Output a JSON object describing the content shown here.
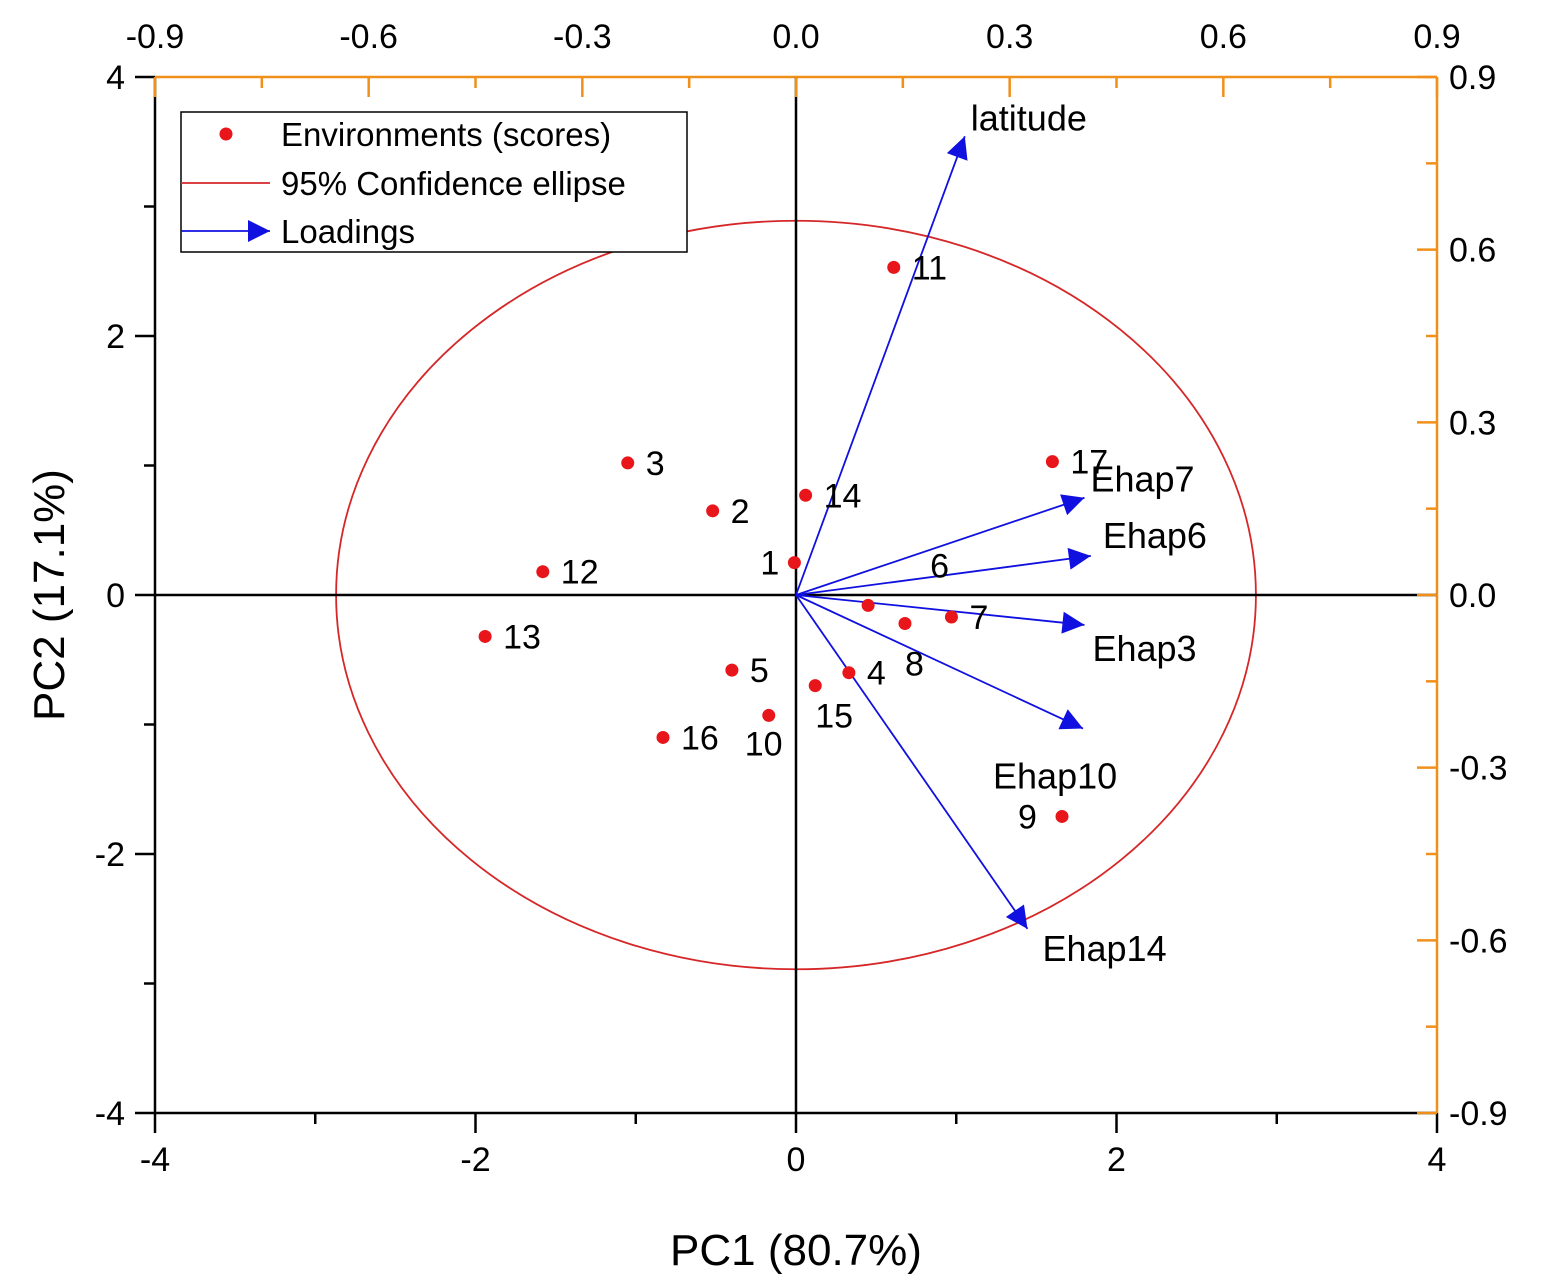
{
  "chart_data": {
    "type": "scatter",
    "xlabel": "PC1 (80.7%)",
    "ylabel": "PC2 (17.1%)",
    "xlim": [
      -4,
      4
    ],
    "ylim": [
      -4,
      4
    ],
    "x_ticks": [
      "-4",
      "-2",
      "0",
      "2",
      "4"
    ],
    "y_ticks": [
      "-4",
      "-2",
      "0",
      "2",
      "4"
    ],
    "top_xlim": [
      -0.9,
      0.9
    ],
    "top_ticks": [
      "-0.9",
      "-0.6",
      "-0.3",
      "0.0",
      "0.3",
      "0.6",
      "0.9"
    ],
    "right_ylim": [
      -0.9,
      0.9
    ],
    "right_ticks": [
      "-0.9",
      "-0.6",
      "-0.3",
      "0.0",
      "0.3",
      "0.6",
      "0.9"
    ],
    "legend": {
      "position": "top-left",
      "entries": [
        "Environments (scores)",
        "95% Confidence ellipse",
        "Loadings"
      ]
    },
    "scores": [
      {
        "label": "1",
        "x": -0.01,
        "y": 0.25
      },
      {
        "label": "2",
        "x": -0.52,
        "y": 0.65
      },
      {
        "label": "3",
        "x": -1.05,
        "y": 1.02
      },
      {
        "label": "4",
        "x": 0.33,
        "y": -0.6
      },
      {
        "label": "5",
        "x": -0.4,
        "y": -0.58
      },
      {
        "label": "6",
        "x": 0.45,
        "y": -0.08
      },
      {
        "label": "7",
        "x": 0.97,
        "y": -0.17
      },
      {
        "label": "8",
        "x": 0.68,
        "y": -0.22
      },
      {
        "label": "9",
        "x": 1.66,
        "y": -1.71
      },
      {
        "label": "10",
        "x": -0.17,
        "y": -0.93
      },
      {
        "label": "11",
        "x": 0.61,
        "y": 2.53
      },
      {
        "label": "12",
        "x": -1.58,
        "y": 0.18
      },
      {
        "label": "13",
        "x": -1.94,
        "y": -0.32
      },
      {
        "label": "14",
        "x": 0.06,
        "y": 0.77
      },
      {
        "label": "15",
        "x": 0.12,
        "y": -0.7
      },
      {
        "label": "16",
        "x": -0.83,
        "y": -1.1
      },
      {
        "label": "17",
        "x": 1.6,
        "y": 1.03
      }
    ],
    "loadings": [
      {
        "label": "latitude",
        "x": 0.237,
        "y": 0.797
      },
      {
        "label": "Ehap7",
        "x": 0.405,
        "y": 0.169
      },
      {
        "label": "Ehap6",
        "x": 0.414,
        "y": 0.068
      },
      {
        "label": "Ehap3",
        "x": 0.405,
        "y": -0.052
      },
      {
        "label": "Ehap10",
        "x": 0.403,
        "y": -0.232
      },
      {
        "label": "Ehap14",
        "x": 0.325,
        "y": -0.58
      }
    ],
    "ellipse": {
      "cx": 0.0,
      "cy": 0.0,
      "rx": 2.87,
      "ry": 2.89
    },
    "colors": {
      "scores": "#e8161b",
      "ellipse": "#d62728",
      "loadings": "#1010e0",
      "secondary_axis": "#f0901a",
      "axis": "#000000",
      "latitude_label": "#1a1aff"
    }
  }
}
